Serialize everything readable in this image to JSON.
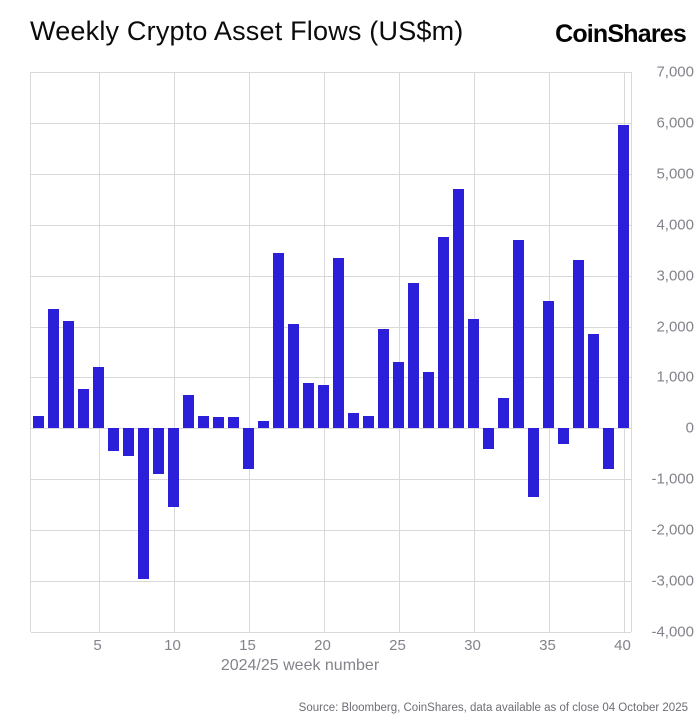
{
  "header": {
    "title": "Weekly Crypto Asset Flows (US$m)",
    "logo_text": "CoinShares"
  },
  "chart_data": {
    "type": "bar",
    "title": "Weekly Crypto Asset Flows (US$m)",
    "xlabel": "2024/25 week number",
    "ylabel": "",
    "x": [
      1,
      2,
      3,
      4,
      5,
      6,
      7,
      8,
      9,
      10,
      11,
      12,
      13,
      14,
      15,
      16,
      17,
      18,
      19,
      20,
      21,
      22,
      23,
      24,
      25,
      26,
      27,
      28,
      29,
      30,
      31,
      32,
      33,
      34,
      35,
      36,
      37,
      38,
      39,
      40
    ],
    "values": [
      250,
      2350,
      2100,
      780,
      1200,
      -450,
      -550,
      -2950,
      -900,
      -1550,
      650,
      250,
      230,
      230,
      -800,
      150,
      3450,
      2050,
      900,
      850,
      3350,
      300,
      250,
      1950,
      1300,
      2850,
      1100,
      3750,
      4700,
      2150,
      -400,
      600,
      3700,
      -1350,
      2500,
      -300,
      3300,
      1850,
      -800,
      5950
    ],
    "ylim": [
      -4000,
      7000
    ],
    "ytick_interval": 1000,
    "ytick_labels": [
      "7,000",
      "6,000",
      "5,000",
      "4,000",
      "3,000",
      "2,000",
      "1,000",
      "0",
      "-1,000",
      "-2,000",
      "-3,000",
      "-4,000"
    ],
    "xticks": [
      5,
      10,
      15,
      20,
      25,
      30,
      35,
      40
    ],
    "xtick_labels": [
      "5",
      "10",
      "15",
      "20",
      "25",
      "30",
      "35",
      "40"
    ],
    "grid": true,
    "legend": "none",
    "bar_color": "#2c1fd9",
    "gridline_color": "#d9d9dd"
  },
  "footer": {
    "source": "Source: Bloomberg, CoinShares, data available as of close 04 October 2025"
  }
}
